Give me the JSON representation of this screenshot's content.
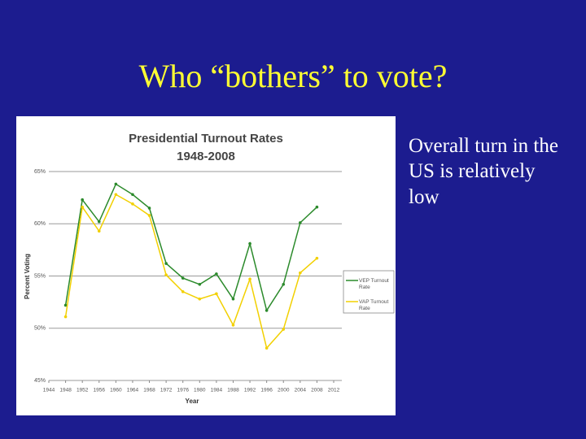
{
  "slide": {
    "title": "Who “bothers” to vote?",
    "body": "Overall turn in the US is relatively low"
  },
  "chart_data": {
    "type": "line",
    "title": "Presidential Turnout Rates",
    "subtitle": "1948-2008",
    "x_label": "Year",
    "y_label": "Percent Voting",
    "x": [
      1948,
      1952,
      1956,
      1960,
      1964,
      1968,
      1972,
      1976,
      1980,
      1984,
      1988,
      1992,
      1996,
      2000,
      2004,
      2008
    ],
    "series": [
      {
        "name": "VEP Turnout Rate",
        "color": "#2b8a2b",
        "values": [
          52.2,
          62.3,
          60.2,
          63.8,
          62.8,
          61.5,
          56.2,
          54.8,
          54.2,
          55.2,
          52.8,
          58.1,
          51.7,
          54.2,
          60.1,
          61.6
        ]
      },
      {
        "name": "VAP Turnout Rate",
        "color": "#f2d000",
        "values": [
          51.1,
          61.6,
          59.3,
          62.8,
          61.9,
          60.8,
          55.1,
          53.5,
          52.8,
          53.3,
          50.3,
          54.7,
          48.1,
          49.9,
          55.3,
          56.7
        ]
      }
    ],
    "xlim": [
      1944,
      2012
    ],
    "xticks": [
      1944,
      1948,
      1952,
      1956,
      1960,
      1964,
      1968,
      1972,
      1976,
      1980,
      1984,
      1988,
      1992,
      1996,
      2000,
      2004,
      2008,
      2012
    ],
    "ylim": [
      45,
      65
    ],
    "yticks": [
      {
        "value": 45,
        "label": "45%"
      },
      {
        "value": 50,
        "label": "50%"
      },
      {
        "value": 55,
        "label": "55%"
      },
      {
        "value": 60,
        "label": "60%"
      },
      {
        "value": 65,
        "label": "65%"
      }
    ],
    "grid": true,
    "legend": "right"
  }
}
